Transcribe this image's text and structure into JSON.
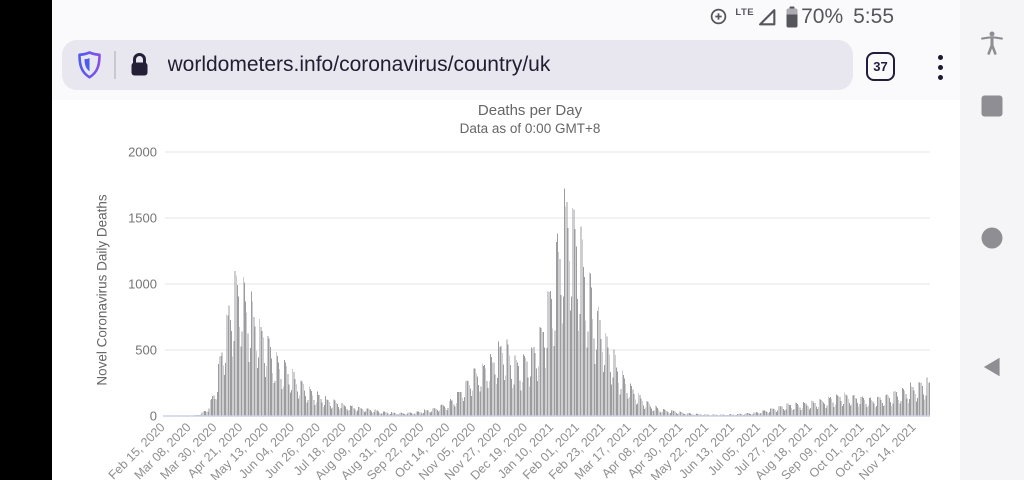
{
  "status_bar": {
    "network_type": "LTE",
    "battery_percent": "70%",
    "time": "5:55"
  },
  "browser_chrome": {
    "url": "worldometers.info/coronavirus/country/uk",
    "tab_count": "37"
  },
  "nav_bar": {
    "buttons": [
      "accessibility",
      "recents",
      "home",
      "back"
    ]
  },
  "colors": {
    "status_icon": "#55565c",
    "chrome_bg": "#fafafc",
    "url_pill_bg": "#e8e6ef",
    "chrome_ink": "#221c3d",
    "shield_gradient_start": "#4f5bf0",
    "shield_gradient_end": "#8450e8",
    "nav_icon": "#8e8e93",
    "page_bg": "#ffffff"
  },
  "chart_data": {
    "type": "bar",
    "title": "Deaths per Day",
    "subtitle": "Data as of 0:00 GMT+8",
    "ylabel": "Novel Coronavirus Daily Deaths",
    "xlabel": "",
    "ylim": [
      0,
      2000
    ],
    "y_ticks": [
      0,
      500,
      1000,
      1500,
      2000
    ],
    "grid": "horizontal gridlines only",
    "legend": "none",
    "bar_color": "#9d9da0",
    "axis_line_color": "#ccd2e3",
    "grid_color": "#e6e6e6",
    "x_start_date": "Feb 15, 2020",
    "x_tick_interval_days": 22,
    "x_tick_labels": [
      "Feb 15, 2020",
      "Mar 08, 2020",
      "Mar 30, 2020",
      "Apr 21, 2020",
      "May 13, 2020",
      "Jun 04, 2020",
      "Jun 26, 2020",
      "Jul 18, 2020",
      "Aug 09, 2020",
      "Aug 31, 2020",
      "Sep 22, 2020",
      "Oct 14, 2020",
      "Nov 05, 2020",
      "Nov 27, 2020",
      "Dec 19, 2020",
      "Jan 10, 2021",
      "Feb 01, 2021",
      "Feb 23, 2021",
      "Mar 17, 2021",
      "Apr 08, 2021",
      "Apr 30, 2021",
      "May 22, 2021",
      "Jun 13, 2021",
      "Jul 05, 2021",
      "Jul 27, 2021",
      "Aug 18, 2021",
      "Sep 09, 2021",
      "Oct 01, 2021",
      "Oct 23, 2021",
      "Nov 14, 2021"
    ],
    "weekly_peak_values": [
      0,
      0,
      0,
      2,
      10,
      55,
      210,
      650,
      1000,
      1150,
      1000,
      800,
      700,
      550,
      450,
      400,
      300,
      250,
      200,
      160,
      130,
      110,
      90,
      80,
      65,
      55,
      40,
      30,
      25,
      25,
      30,
      40,
      55,
      70,
      100,
      150,
      230,
      330,
      400,
      450,
      500,
      620,
      480,
      450,
      500,
      600,
      800,
      1150,
      1550,
      1820,
      1550,
      1250,
      950,
      750,
      550,
      400,
      300,
      200,
      130,
      90,
      60,
      45,
      40,
      25,
      20,
      15,
      12,
      12,
      12,
      15,
      20,
      25,
      35,
      50,
      70,
      90,
      100,
      105,
      110,
      120,
      140,
      160,
      180,
      170,
      160,
      150,
      145,
      160,
      180,
      200,
      230,
      260,
      280
    ],
    "weekday_factors_sat_to_fri": [
      0.62,
      0.45,
      0.55,
      1.0,
      0.96,
      0.9,
      0.8
    ],
    "max_single_day_value": 1820
  }
}
